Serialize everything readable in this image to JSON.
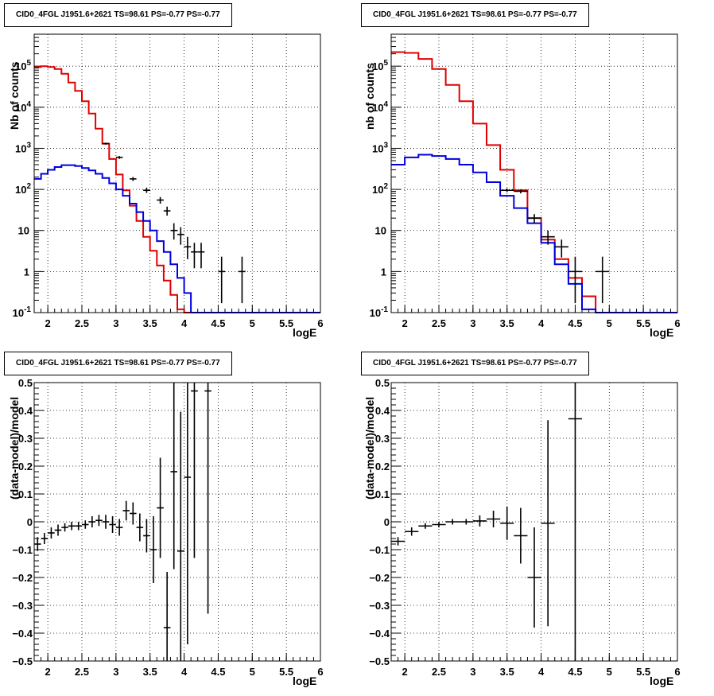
{
  "chart_data": [
    {
      "type": "line",
      "title": "CID0_4FGL J1951.6+2621 TS=98.61 PS=-0.77 PS=-0.77",
      "xlabel": "logE",
      "ylabel": "Nb of counts",
      "yscale": "log",
      "xlim": [
        1.8,
        6
      ],
      "ylim": [
        0.1,
        600000
      ],
      "x_tick_labels": [
        "2",
        "2.5",
        "3",
        "3.5",
        "4",
        "4.5",
        "5",
        "5.5",
        "6"
      ],
      "y_tick_labels": [
        "10^-1",
        "1",
        "10",
        "10^2",
        "10^3",
        "10^4",
        "10^5"
      ],
      "grid": true,
      "bin_edges": [
        1.8,
        1.9,
        2.0,
        2.1,
        2.2,
        2.3,
        2.4,
        2.5,
        2.6,
        2.7,
        2.8,
        2.9,
        3.0,
        3.1,
        3.2,
        3.3,
        3.4,
        3.5,
        3.6,
        3.7,
        3.8,
        3.9,
        4.0,
        4.1,
        4.2,
        4.3,
        4.4,
        4.5,
        4.6,
        4.7,
        4.8,
        4.9,
        5.0,
        5.1,
        5.2,
        5.3,
        5.4,
        5.5,
        5.6,
        5.7,
        5.8,
        5.9,
        6.0
      ],
      "series": [
        {
          "color": "#e00000",
          "values": [
            95000,
            100000,
            95000,
            85000,
            65000,
            40000,
            25000,
            14000,
            7000,
            3000,
            1300,
            550,
            230,
            95,
            40,
            17,
            7,
            3.2,
            1.4,
            0.6,
            0.27,
            0.12,
            0.1,
            0.1,
            0.1,
            0.1,
            0.1,
            0.1,
            0.1,
            0.1,
            0.1,
            0.1,
            0.1,
            0.1,
            0.1,
            0.1,
            0.1,
            0.1,
            0.1,
            0.1,
            0.1,
            0.1
          ]
        },
        {
          "color": "#0000dd",
          "values": [
            180,
            240,
            300,
            350,
            390,
            390,
            370,
            330,
            290,
            240,
            190,
            140,
            100,
            70,
            45,
            28,
            17,
            10,
            5.5,
            3,
            1.5,
            0.7,
            0.3,
            0.1,
            0.1,
            0.1,
            0.1,
            0.1,
            0.1,
            0.1,
            0.1,
            0.1,
            0.1,
            0.1,
            0.1,
            0.1,
            0.1,
            0.1,
            0.1,
            0.1,
            0.1,
            0.1
          ]
        }
      ],
      "data_points": {
        "x": [
          2.85,
          3.05,
          3.25,
          3.45,
          3.65,
          3.75,
          3.85,
          3.95,
          4.05,
          4.15,
          4.25,
          4.55,
          4.85
        ],
        "y": [
          1300,
          600,
          180,
          95,
          55,
          30,
          10,
          8,
          4,
          3,
          3,
          1,
          1
        ],
        "ylow": [
          1230,
          555,
          160,
          82,
          45,
          23,
          6,
          4.5,
          2,
          1.2,
          1.2,
          0.17,
          0.17
        ],
        "yhigh": [
          1370,
          650,
          200,
          110,
          65,
          38,
          15,
          12,
          7,
          5,
          5,
          2.3,
          2.3
        ]
      }
    },
    {
      "type": "line",
      "title": "CID0_4FGL J1951.6+2621 TS=98.61 PS=-0.77 PS=-0.77",
      "xlabel": "logE",
      "ylabel": "nb of counts",
      "yscale": "log",
      "xlim": [
        1.8,
        6
      ],
      "ylim": [
        0.1,
        600000
      ],
      "x_tick_labels": [
        "2",
        "2.5",
        "3",
        "3.5",
        "4",
        "4.5",
        "5",
        "5.5",
        "6"
      ],
      "y_tick_labels": [
        "10^-1",
        "1",
        "10",
        "10^2",
        "10^3",
        "10^4",
        "10^5"
      ],
      "grid": true,
      "bin_edges": [
        1.8,
        2.0,
        2.2,
        2.4,
        2.6,
        2.8,
        3.0,
        3.2,
        3.4,
        3.6,
        3.8,
        4.0,
        4.2,
        4.4,
        4.6,
        4.8,
        5.0,
        5.2,
        5.4,
        5.6,
        5.8,
        6.0
      ],
      "series": [
        {
          "color": "#e00000",
          "values": [
            220000,
            210000,
            150000,
            85000,
            35000,
            14000,
            4000,
            1200,
            300,
            95,
            20,
            6,
            2,
            0.7,
            0.25,
            0.1,
            0.1,
            0.1,
            0.1,
            0.1,
            0.1
          ]
        },
        {
          "color": "#0000dd",
          "values": [
            400,
            600,
            700,
            650,
            550,
            400,
            260,
            150,
            70,
            35,
            15,
            5,
            1.5,
            0.5,
            0.12,
            0.1,
            0.1,
            0.1,
            0.1,
            0.1,
            0.1
          ]
        }
      ],
      "data_points": {
        "x": [
          3.5,
          3.7,
          3.9,
          4.1,
          4.3,
          4.5,
          4.9
        ],
        "y": [
          95,
          90,
          20,
          7,
          4,
          1,
          1
        ],
        "ylow": [
          86,
          80,
          15,
          4.5,
          2.2,
          0.17,
          0.17
        ],
        "yhigh": [
          105,
          100,
          25,
          10,
          6,
          2.3,
          2.3
        ]
      }
    },
    {
      "type": "scatter",
      "title": "CID0_4FGL J1951.6+2621 TS=98.61 PS=-0.77 PS=-0.77",
      "xlabel": "logE",
      "ylabel": "(data-model)/model",
      "xlim": [
        1.8,
        6
      ],
      "ylim": [
        -0.5,
        0.5
      ],
      "x_tick_labels": [
        "2",
        "2.5",
        "3",
        "3.5",
        "4",
        "4.5",
        "5",
        "5.5",
        "6"
      ],
      "y_tick_labels": [
        "-0.5",
        "-0.4",
        "-0.3",
        "-0.2",
        "-0.1",
        "0",
        "0.1",
        "0.2",
        "0.3",
        "0.4",
        "0.5"
      ],
      "grid": true,
      "xerr": 0.05,
      "points": {
        "x": [
          1.85,
          1.95,
          2.05,
          2.15,
          2.25,
          2.35,
          2.45,
          2.55,
          2.65,
          2.75,
          2.85,
          2.95,
          3.05,
          3.15,
          3.25,
          3.35,
          3.45,
          3.55,
          3.65,
          3.75,
          3.85,
          3.95,
          4.05,
          4.15,
          4.35
        ],
        "y": [
          -0.08,
          -0.06,
          -0.04,
          -0.03,
          -0.02,
          -0.015,
          -0.015,
          -0.01,
          0.0,
          0.005,
          0.0,
          -0.01,
          -0.02,
          0.04,
          0.03,
          -0.02,
          -0.05,
          -0.1,
          0.05,
          -0.38,
          0.18,
          -0.105,
          0.16,
          0.47,
          0.47
        ],
        "err": [
          0.025,
          0.02,
          0.02,
          0.02,
          0.015,
          0.015,
          0.015,
          0.015,
          0.02,
          0.02,
          0.025,
          0.03,
          0.03,
          0.035,
          0.04,
          0.05,
          0.06,
          0.12,
          0.18,
          0.2,
          0.35,
          0.5,
          0.6,
          0.6,
          0.8
        ]
      }
    },
    {
      "type": "scatter",
      "title": "CID0_4FGL J1951.6+2621 TS=98.61 PS=-0.77 PS=-0.77",
      "xlabel": "logE",
      "ylabel": "(data-model)/model",
      "xlim": [
        1.8,
        6
      ],
      "ylim": [
        -0.5,
        0.5
      ],
      "x_tick_labels": [
        "2",
        "2.5",
        "3",
        "3.5",
        "4",
        "4.5",
        "5",
        "5.5",
        "6"
      ],
      "y_tick_labels": [
        "-0.5",
        "-0.4",
        "-0.3",
        "-0.2",
        "-0.1",
        "0",
        "0.1",
        "0.2",
        "0.3",
        "0.4",
        "0.5"
      ],
      "grid": true,
      "xerr": 0.1,
      "points": {
        "x": [
          1.9,
          2.1,
          2.3,
          2.5,
          2.7,
          2.9,
          3.1,
          3.3,
          3.5,
          3.7,
          3.9,
          4.1,
          4.5
        ],
        "y": [
          -0.07,
          -0.035,
          -0.015,
          -0.01,
          0.0,
          0.0,
          0.003,
          0.01,
          -0.005,
          -0.05,
          -0.2,
          -0.005,
          0.37
        ],
        "err": [
          0.015,
          0.015,
          0.01,
          0.01,
          0.01,
          0.01,
          0.02,
          0.03,
          0.06,
          0.1,
          0.18,
          0.37,
          0.9
        ]
      }
    }
  ]
}
